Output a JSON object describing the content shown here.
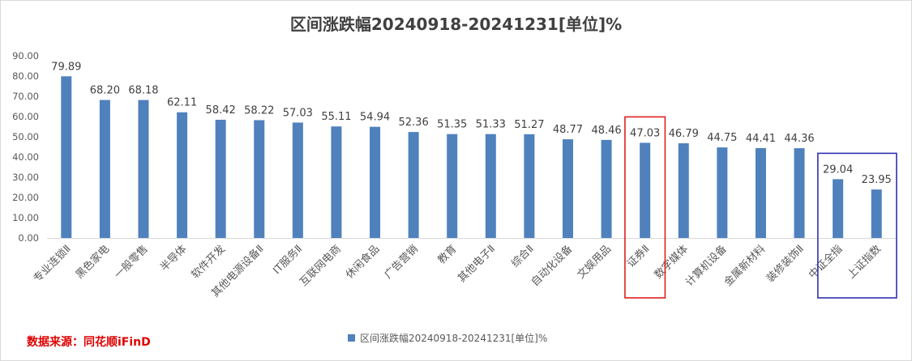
{
  "chart_data": {
    "type": "bar",
    "title": "区间涨跌幅20240918-20241231[单位]%",
    "categories": [
      "专业连锁Ⅱ",
      "黑色家电",
      "一般零售",
      "半导体",
      "软件开发",
      "其他电源设备Ⅱ",
      "IT服务Ⅱ",
      "互联网电商",
      "休闲食品",
      "广告营销",
      "教育",
      "其他电子Ⅱ",
      "综合Ⅱ",
      "自动化设备",
      "文娱用品",
      "证券Ⅱ",
      "数字媒体",
      "计算机设备",
      "金属新材料",
      "装修装饰Ⅱ",
      "中证全指",
      "上证指数"
    ],
    "series": [
      {
        "name": "区间涨跌幅20240918-20241231[单位]%",
        "values": [
          79.89,
          68.2,
          68.18,
          62.11,
          58.42,
          58.22,
          57.03,
          55.11,
          54.94,
          52.36,
          51.35,
          51.33,
          51.27,
          48.77,
          48.46,
          47.03,
          46.79,
          44.75,
          44.41,
          44.36,
          29.04,
          23.95
        ],
        "labels": [
          "79.89",
          "68.20",
          "68.18",
          "62.11",
          "58.42",
          "58.22",
          "57.03",
          "55.11",
          "54.94",
          "52.36",
          "51.35",
          "51.33",
          "51.27",
          "48.77",
          "48.46",
          "47.03",
          "46.79",
          "44.75",
          "44.41",
          "44.36",
          "29.04",
          "23.95"
        ]
      }
    ],
    "ylim": [
      0,
      90
    ],
    "yticks": [
      "0.00",
      "10.00",
      "20.00",
      "30.00",
      "40.00",
      "50.00",
      "60.00",
      "70.00",
      "80.00",
      "90.00"
    ],
    "grid": false,
    "legend": "bottom",
    "color": "#4f81bd",
    "highlights": [
      {
        "categories": [
          "证券Ⅱ"
        ],
        "color": "#e02020"
      },
      {
        "categories": [
          "中证全指",
          "上证指数"
        ],
        "color": "#3030b0"
      }
    ]
  },
  "source": "数据来源：同花顺iFinD"
}
